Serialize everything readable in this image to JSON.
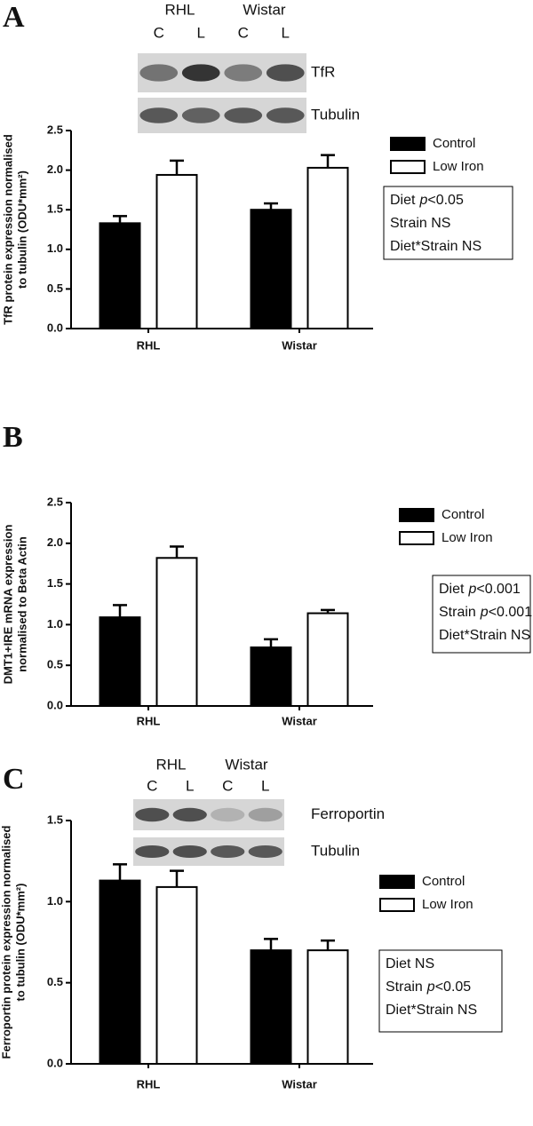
{
  "chart_data": [
    {
      "type": "bar",
      "panel_label": "A",
      "blot": {
        "groups": [
          "RHL",
          "Wistar"
        ],
        "lanes": [
          "C",
          "L",
          "C",
          "L"
        ],
        "rows": [
          "TfR",
          "Tubulin"
        ]
      },
      "ylabel": [
        "TfR protein expression normalised",
        "to tubulin (ODU*mm²)"
      ],
      "categories": [
        "RHL",
        "Wistar"
      ],
      "series": [
        {
          "name": "Control",
          "color": "#000000",
          "values": [
            1.33,
            1.5
          ],
          "errors": [
            0.09,
            0.08
          ]
        },
        {
          "name": "Low Iron",
          "color": "#ffffff",
          "values": [
            1.94,
            2.03
          ],
          "errors": [
            0.18,
            0.16
          ]
        }
      ],
      "ylim": [
        0,
        2.5
      ],
      "yticks": [
        {
          "value": 0,
          "label": "0.0"
        },
        0.5,
        {
          "value": 1,
          "label": "1.0"
        },
        1.5,
        {
          "value": 2,
          "label": "2.0"
        },
        2.5
      ],
      "stats": [
        {
          "prefix": "Diet",
          "italic": "p",
          "suffix": "<0.05"
        },
        {
          "prefix": "Strain NS"
        },
        {
          "prefix": "Diet*Strain NS"
        }
      ]
    },
    {
      "type": "bar",
      "panel_label": "B",
      "ylabel": [
        "DMT1+IRE mRNA expression",
        "normalised to Beta Actin"
      ],
      "categories": [
        "RHL",
        "Wistar"
      ],
      "series": [
        {
          "name": "Control",
          "color": "#000000",
          "values": [
            1.09,
            0.72
          ],
          "errors": [
            0.15,
            0.1
          ]
        },
        {
          "name": "Low Iron",
          "color": "#ffffff",
          "values": [
            1.82,
            1.14
          ],
          "errors": [
            0.14,
            0.04
          ]
        }
      ],
      "ylim": [
        0,
        2.5
      ],
      "yticks": [
        {
          "value": 0,
          "label": "0.0"
        },
        0.5,
        {
          "value": 1,
          "label": "1.0"
        },
        1.5,
        {
          "value": 2,
          "label": "2.0"
        },
        2.5
      ],
      "stats": [
        {
          "prefix": "Diet",
          "italic": "p",
          "suffix": "<0.001"
        },
        {
          "prefix": "Strain",
          "italic": "p",
          "suffix": "<0.001"
        },
        {
          "prefix": "Diet*Strain NS"
        }
      ]
    },
    {
      "type": "bar",
      "panel_label": "C",
      "blot": {
        "groups": [
          "RHL",
          "Wistar"
        ],
        "lanes": [
          "C",
          "L",
          "C",
          "L"
        ],
        "rows": [
          "Ferroportin",
          "Tubulin"
        ]
      },
      "ylabel": [
        "Ferroportin protein expression normalised",
        "to tubulin (ODU*mm²)"
      ],
      "categories": [
        "RHL",
        "Wistar"
      ],
      "series": [
        {
          "name": "Control",
          "color": "#000000",
          "values": [
            1.13,
            0.7
          ],
          "errors": [
            0.1,
            0.07
          ]
        },
        {
          "name": "Low Iron",
          "color": "#ffffff",
          "values": [
            1.09,
            0.7
          ],
          "errors": [
            0.1,
            0.06
          ]
        }
      ],
      "ylim": [
        0,
        1.5
      ],
      "yticks": [
        {
          "value": 0,
          "label": "0.0"
        },
        0.5,
        {
          "value": 1,
          "label": "1.0"
        },
        1.5
      ],
      "stats": [
        {
          "prefix": "Diet NS"
        },
        {
          "prefix": "Strain",
          "italic": "p",
          "suffix": "<0.05"
        },
        {
          "prefix": "Diet*Strain NS"
        }
      ]
    }
  ]
}
